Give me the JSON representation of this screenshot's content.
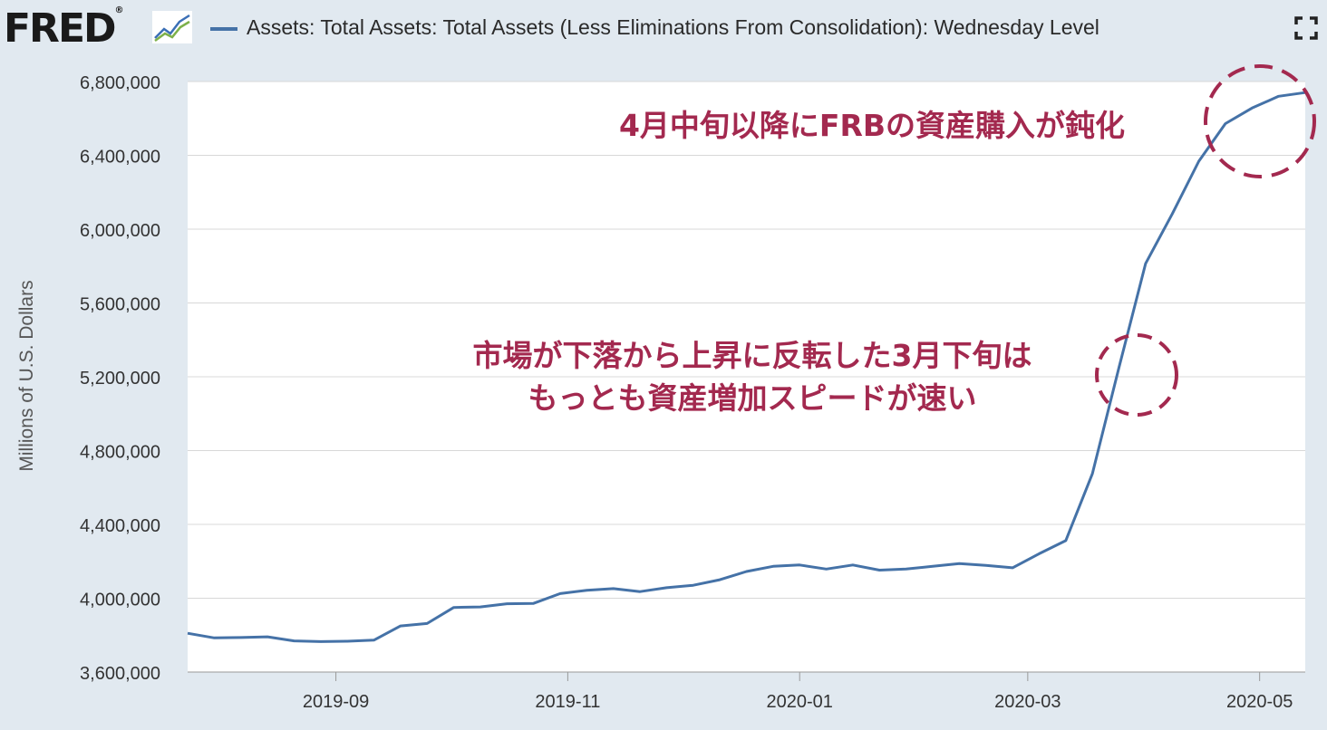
{
  "header": {
    "logo_text": "FRED",
    "logo_mark": "®",
    "legend_label": "Assets: Total Assets: Total Assets (Less Eliminations From Consolidation): Wednesday Level",
    "expand_icon": "fullscreen-expand-icon"
  },
  "annotations": {
    "top": "4月中旬以降にFRBの資産購入が鈍化",
    "middle_line1": "市場が下落から上昇に反転した3月下旬は",
    "middle_line2": "もっとも資産増加スピードが速い"
  },
  "colors": {
    "series": "#4572a7",
    "annotation": "#a3294f",
    "background": "#e1e9f0",
    "plot": "#ffffff"
  },
  "chart_data": {
    "type": "line",
    "title": "",
    "xlabel": "",
    "ylabel": "Millions of U.S. Dollars",
    "ylim": [
      3600000,
      6800000
    ],
    "yticks": [
      3600000,
      4000000,
      4400000,
      4800000,
      5200000,
      5600000,
      6000000,
      6400000,
      6800000
    ],
    "ytick_labels": [
      "3,600,000",
      "4,000,000",
      "4,400,000",
      "4,800,000",
      "5,200,000",
      "5,600,000",
      "6,000,000",
      "6,400,000",
      "6,800,000"
    ],
    "xlim": [
      "2019-07-24",
      "2020-05-13"
    ],
    "xticks": [
      "2019-09-01",
      "2019-11-01",
      "2020-01-01",
      "2020-03-01",
      "2020-05-01"
    ],
    "xtick_labels": [
      "2019-09",
      "2019-11",
      "2020-01",
      "2020-03",
      "2020-05"
    ],
    "grid": true,
    "legend": "top",
    "series": [
      {
        "name": "Assets: Total Assets: Total Assets (Less Eliminations From Consolidation): Wednesday Level",
        "x": [
          "2019-07-24",
          "2019-07-31",
          "2019-08-07",
          "2019-08-14",
          "2019-08-21",
          "2019-08-28",
          "2019-09-04",
          "2019-09-11",
          "2019-09-18",
          "2019-09-25",
          "2019-10-02",
          "2019-10-09",
          "2019-10-16",
          "2019-10-23",
          "2019-10-30",
          "2019-11-06",
          "2019-11-13",
          "2019-11-20",
          "2019-11-27",
          "2019-12-04",
          "2019-12-11",
          "2019-12-18",
          "2019-12-25",
          "2020-01-01",
          "2020-01-08",
          "2020-01-15",
          "2020-01-22",
          "2020-01-29",
          "2020-02-05",
          "2020-02-12",
          "2020-02-19",
          "2020-02-26",
          "2020-03-04",
          "2020-03-11",
          "2020-03-18",
          "2020-03-25",
          "2020-04-01",
          "2020-04-08",
          "2020-04-15",
          "2020-04-22",
          "2020-04-29",
          "2020-05-06",
          "2020-05-13"
        ],
        "values": [
          3810000,
          3785000,
          3787000,
          3791000,
          3769000,
          3765000,
          3767000,
          3773000,
          3850000,
          3863000,
          3950000,
          3953000,
          3970000,
          3972000,
          4025000,
          4043000,
          4052000,
          4036000,
          4057000,
          4070000,
          4100000,
          4145000,
          4173000,
          4180000,
          4158000,
          4180000,
          4152000,
          4158000,
          4173000,
          4188000,
          4178000,
          4165000,
          4241000,
          4312000,
          4674000,
          5250000,
          5814000,
          6082000,
          6368000,
          6572000,
          6656000,
          6720000,
          6740000
        ]
      }
    ]
  }
}
